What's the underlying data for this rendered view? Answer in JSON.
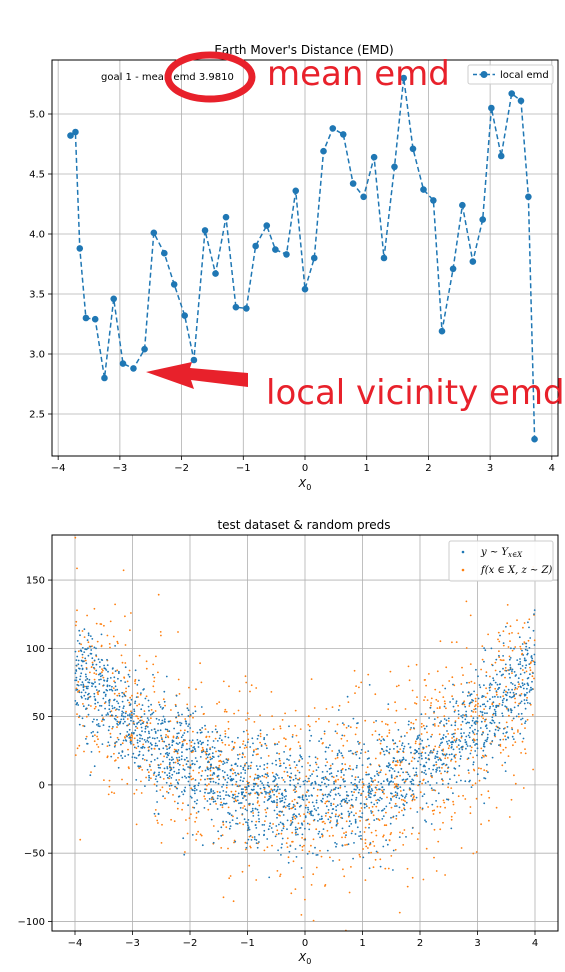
{
  "chart_data": [
    {
      "type": "line",
      "title": "Earth Mover's Distance (EMD)",
      "xlabel": "X_0",
      "ylabel": "",
      "xlim": [
        -4.1,
        4.1
      ],
      "ylim": [
        2.15,
        5.45
      ],
      "xticks": [
        -4,
        -3,
        -2,
        -1,
        0,
        1,
        2,
        3,
        4
      ],
      "xtick_labels": [
        "−4",
        "−3",
        "−2",
        "−1",
        "0",
        "1",
        "2",
        "3",
        "4"
      ],
      "yticks": [
        2.5,
        3.0,
        3.5,
        4.0,
        4.5,
        5.0
      ],
      "ytick_labels": [
        "2.5",
        "3.0",
        "3.5",
        "4.0",
        "4.5",
        "5.0"
      ],
      "grid": true,
      "legend_position": "top-right",
      "series": [
        {
          "name": "local emd",
          "color": "#1f77b4",
          "style": "dashed-with-markers",
          "x": [
            -3.8,
            -3.72,
            -3.65,
            -3.55,
            -3.4,
            -3.25,
            -3.1,
            -2.95,
            -2.78,
            -2.6,
            -2.45,
            -2.28,
            -2.12,
            -1.95,
            -1.8,
            -1.62,
            -1.45,
            -1.28,
            -1.12,
            -0.95,
            -0.8,
            -0.62,
            -0.48,
            -0.3,
            -0.15,
            0.0,
            0.15,
            0.3,
            0.45,
            0.62,
            0.78,
            0.95,
            1.12,
            1.28,
            1.45,
            1.6,
            1.75,
            1.92,
            2.08,
            2.22,
            2.4,
            2.55,
            2.72,
            2.88,
            3.02,
            3.18,
            3.35,
            3.5,
            3.62,
            3.72
          ],
          "y": [
            4.82,
            4.85,
            3.88,
            3.3,
            3.29,
            2.8,
            3.46,
            2.92,
            2.88,
            3.04,
            4.01,
            3.84,
            3.58,
            3.32,
            2.95,
            4.03,
            3.67,
            4.14,
            3.39,
            3.38,
            3.9,
            4.07,
            3.87,
            3.83,
            4.36,
            3.54,
            3.8,
            4.69,
            4.88,
            4.83,
            4.42,
            4.31,
            4.64,
            3.8,
            4.56,
            5.3,
            4.71,
            4.37,
            4.28,
            3.19,
            3.71,
            4.24,
            3.77,
            4.12,
            5.05,
            4.65,
            5.17,
            5.11,
            4.31,
            2.29
          ]
        }
      ],
      "text_annotation": "goal 1 - mean emd 3.9810",
      "overlay_annotations": [
        {
          "text": "mean emd",
          "color": "#e8212b",
          "shape": "ellipse-circling-mean-emd"
        },
        {
          "text": "local vicinity emd",
          "color": "#e8212b",
          "shape": "arrow-pointing-left-at-dip"
        }
      ]
    },
    {
      "type": "scatter",
      "title": "test dataset & random preds",
      "xlabel": "X_0",
      "ylabel": "",
      "xlim": [
        -4.4,
        4.4
      ],
      "ylim": [
        -107,
        183
      ],
      "xticks": [
        -4,
        -3,
        -2,
        -1,
        0,
        1,
        2,
        3,
        4
      ],
      "xtick_labels": [
        "−4",
        "−3",
        "−2",
        "−1",
        "0",
        "1",
        "2",
        "3",
        "4"
      ],
      "yticks": [
        -100,
        -50,
        0,
        50,
        100,
        150
      ],
      "ytick_labels": [
        "−100",
        "−50",
        "0",
        "50",
        "100",
        "150"
      ],
      "grid": true,
      "legend_position": "top-right",
      "series": [
        {
          "name": "y ~ Y_{x∈X}",
          "color": "#1f77b4",
          "x_range": [
            -4,
            4
          ],
          "trend": "6*x^2 - 10",
          "spread": 20,
          "count": 2200
        },
        {
          "name": "f(x ∈ X, z ~ Z)",
          "color": "#ff7f0e",
          "x_range": [
            -4,
            4
          ],
          "trend": "6*x^2 - 10",
          "spread": 35,
          "count": 1300
        }
      ]
    }
  ]
}
